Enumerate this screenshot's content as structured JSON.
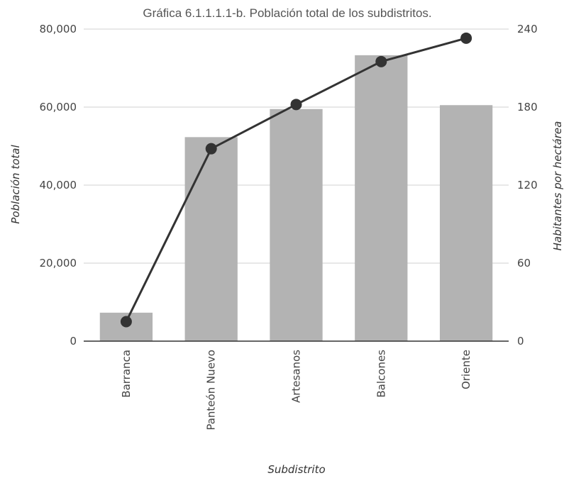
{
  "chart_data": {
    "type": "bar",
    "title": "Gráfica 6.1.1.1.1-b. Población total de los subdistritos.",
    "xlabel": "Subdistrito",
    "ylabel": "Población total",
    "y2label": "Habitantes por hectárea",
    "categories": [
      "Barranca",
      "Panteón Nuevo",
      "Artesanos",
      "Balcones",
      "Oriente"
    ],
    "ylim": [
      0,
      80000
    ],
    "y2lim": [
      0,
      240
    ],
    "yticks": [
      "0",
      "20,000",
      "40,000",
      "60,000",
      "80,000"
    ],
    "y2ticks": [
      "0",
      "60",
      "120",
      "180",
      "240"
    ],
    "series": [
      {
        "type": "bar",
        "axis": "left",
        "color": "#b3b3b3",
        "values": [
          7300,
          52300,
          59500,
          73300,
          60500
        ]
      },
      {
        "type": "line",
        "axis": "right",
        "color": "#333333",
        "values": [
          15,
          148,
          182,
          215,
          233
        ]
      }
    ],
    "grid": true,
    "legend": "none"
  }
}
